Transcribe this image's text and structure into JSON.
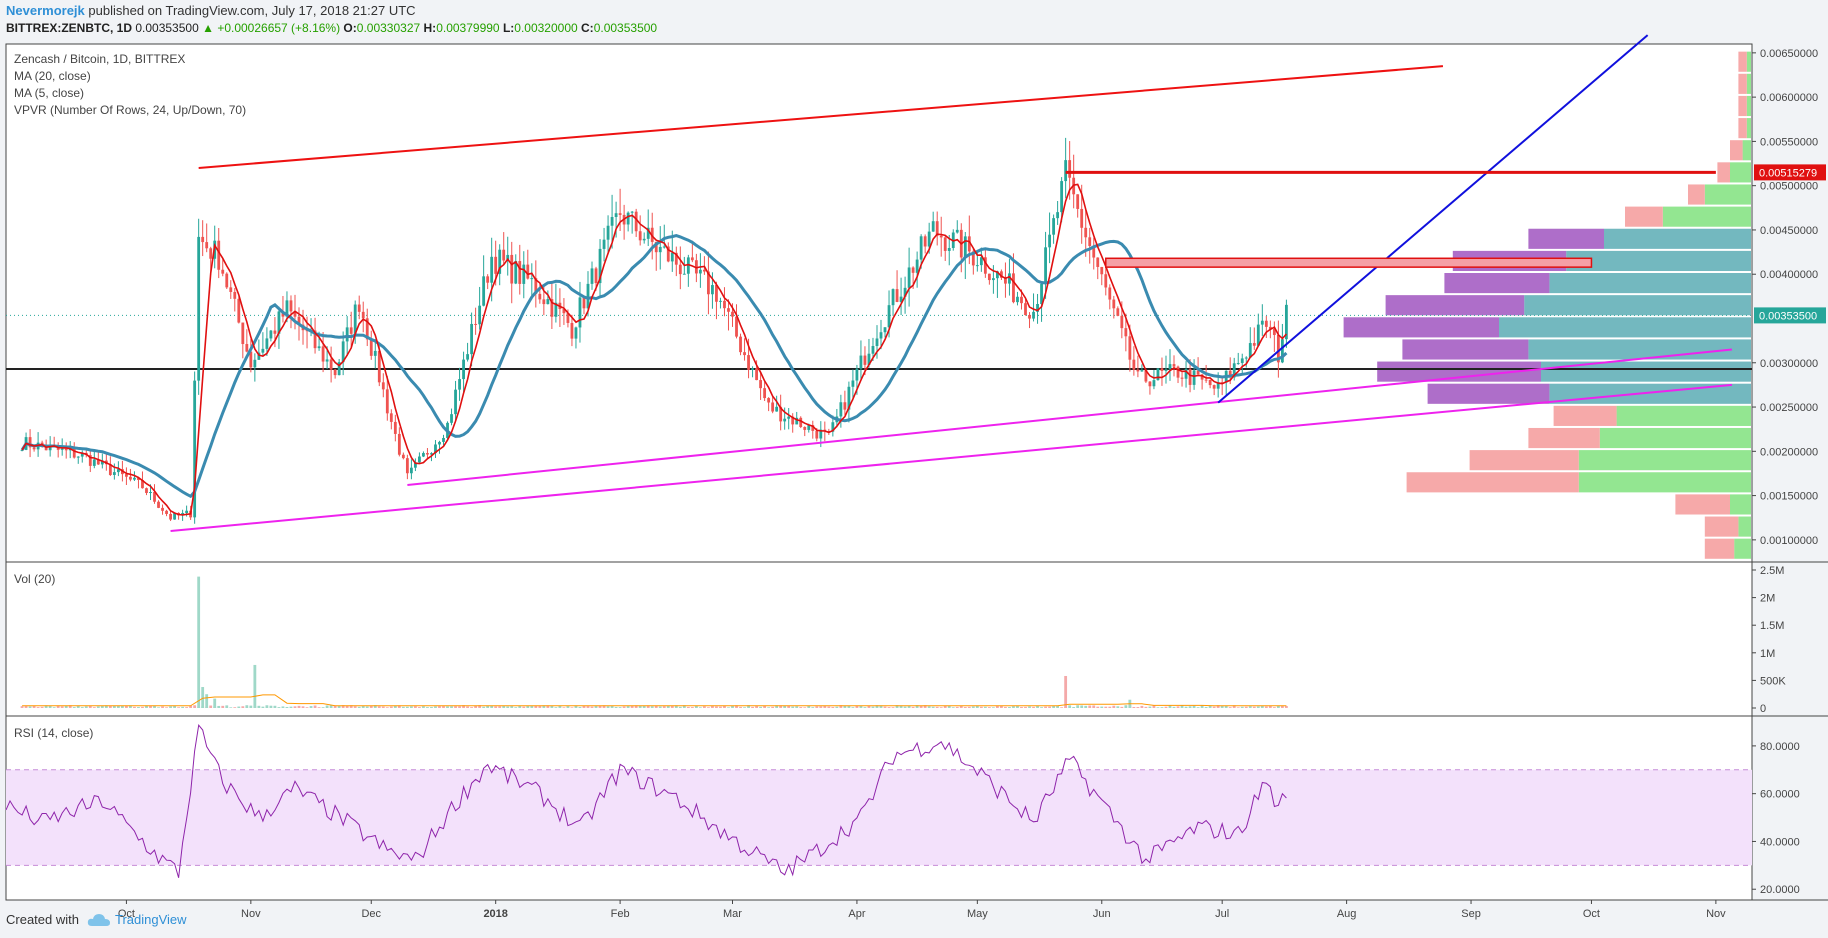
{
  "header": {
    "author": "Nevermorejk",
    "published": "published on TradingView.com, July 17, 2018 21:27 UTC",
    "symbol": "BITTREX:ZENBTC, 1D",
    "last": "0.00353500",
    "change": "+0.00026657 (+8.16%)",
    "o_label": "O:",
    "o": "0.00330327",
    "h_label": "H:",
    "h": "0.00379990",
    "l_label": "L:",
    "l": "0.00320000",
    "c_label": "C:",
    "c": "0.00353500"
  },
  "legend": {
    "title": "Zencash / Bitcoin, 1D, BITTREX",
    "ma20": "MA (20, close)",
    "ma5": "MA (5, close)",
    "vpvr": "VPVR (Number Of Rows, 24, Up/Down, 70)",
    "vol": "Vol (20)",
    "rsi": "RSI (14, close)"
  },
  "footer": {
    "created": "Created with",
    "brand": "TradingView"
  },
  "colors": {
    "up": "#26a69a",
    "down": "#ef5350",
    "ma5": "#e01010",
    "ma20": "#3a8bb0",
    "channel_top": "#ee1111",
    "channel_bottom": "#ee22ee",
    "trend": "#1010dd",
    "vp_up": "#80e27e",
    "vp_down": "#f49a9a",
    "vp_up_va": "#5aabb4",
    "vp_down_va": "#a055c0",
    "rsi": "#8e24aa",
    "rsi_band": "#f3e1fb"
  },
  "chart_data": [
    {
      "type": "candlestick",
      "title": "Zencash / Bitcoin, 1D, BITTREX",
      "x_ticks": [
        "Oct",
        "Nov",
        "Dec",
        "2018",
        "Feb",
        "Mar",
        "Apr",
        "May",
        "Jun",
        "Jul",
        "Aug",
        "Sep",
        "Oct",
        "Nov"
      ],
      "y_ticks": [
        "0.00650000",
        "0.00600000",
        "0.00550000",
        "0.00500000",
        "0.00450000",
        "0.00400000",
        "0.00300000",
        "0.00250000",
        "0.00200000",
        "0.00150000",
        "0.00100000"
      ],
      "ylim": [
        0.00075,
        0.0066
      ],
      "last_price_label": "0.00353500",
      "resistance_label": "0.00515279",
      "daily_close_keypoints": [
        {
          "date": "2017-09-05",
          "close": 0.0021
        },
        {
          "date": "2017-09-20",
          "close": 0.00195
        },
        {
          "date": "2017-10-05",
          "close": 0.0016
        },
        {
          "date": "2017-10-12",
          "close": 0.00125
        },
        {
          "date": "2017-10-17",
          "close": 0.0013
        },
        {
          "date": "2017-10-19",
          "close": 0.0044
        },
        {
          "date": "2017-10-24",
          "close": 0.0042
        },
        {
          "date": "2017-11-01",
          "close": 0.003
        },
        {
          "date": "2017-11-10",
          "close": 0.0036
        },
        {
          "date": "2017-11-22",
          "close": 0.0029
        },
        {
          "date": "2017-11-28",
          "close": 0.0037
        },
        {
          "date": "2017-12-05",
          "close": 0.0025
        },
        {
          "date": "2017-12-10",
          "close": 0.0017
        },
        {
          "date": "2017-12-20",
          "close": 0.0023
        },
        {
          "date": "2017-12-31",
          "close": 0.0042
        },
        {
          "date": "2018-01-10",
          "close": 0.0039
        },
        {
          "date": "2018-01-20",
          "close": 0.0034
        },
        {
          "date": "2018-02-01",
          "close": 0.0047
        },
        {
          "date": "2018-02-10",
          "close": 0.0043
        },
        {
          "date": "2018-02-25",
          "close": 0.0038
        },
        {
          "date": "2018-03-10",
          "close": 0.0025
        },
        {
          "date": "2018-03-25",
          "close": 0.00215
        },
        {
          "date": "2018-04-05",
          "close": 0.0033
        },
        {
          "date": "2018-04-20",
          "close": 0.0045
        },
        {
          "date": "2018-05-01",
          "close": 0.0042
        },
        {
          "date": "2018-05-15",
          "close": 0.0036
        },
        {
          "date": "2018-05-23",
          "close": 0.0051
        },
        {
          "date": "2018-06-02",
          "close": 0.0038
        },
        {
          "date": "2018-06-10",
          "close": 0.0028
        },
        {
          "date": "2018-06-20",
          "close": 0.0029
        },
        {
          "date": "2018-06-30",
          "close": 0.0027
        },
        {
          "date": "2018-07-08",
          "close": 0.0032
        },
        {
          "date": "2018-07-12",
          "close": 0.00345
        },
        {
          "date": "2018-07-15",
          "close": 0.0031
        },
        {
          "date": "2018-07-17",
          "close": 0.003535
        }
      ],
      "horizontal_level": 0.00293,
      "drawings": [
        {
          "name": "channel-top",
          "from": {
            "date": "2017-10-19",
            "price": 0.0052
          },
          "to": {
            "date": "2018-08-25",
            "price": 0.00635
          }
        },
        {
          "name": "channel-bottom-1",
          "from": {
            "date": "2017-10-12",
            "price": 0.0011
          },
          "to": {
            "date": "2018-11-05",
            "price": 0.00275
          }
        },
        {
          "name": "channel-bottom-2",
          "from": {
            "date": "2017-12-10",
            "price": 0.00162
          },
          "to": {
            "date": "2018-11-05",
            "price": 0.00315
          }
        },
        {
          "name": "trend-line",
          "from": {
            "date": "2018-06-30",
            "price": 0.00255
          },
          "to": {
            "date": "2018-10-15",
            "price": 0.0067
          }
        },
        {
          "name": "resistance",
          "from": {
            "date": "2018-05-23",
            "price": 0.00515
          },
          "to": {
            "date": "2018-11-01",
            "price": 0.00515
          }
        },
        {
          "name": "resistance-zone",
          "from": {
            "date": "2018-06-02",
            "price": 0.00418
          },
          "to": {
            "date": "2018-10-01",
            "price": 0.00408
          }
        }
      ],
      "volume_profile": [
        {
          "price": 0.0064,
          "up": 0.01,
          "down": 0.02
        },
        {
          "price": 0.00615,
          "up": 0.01,
          "down": 0.02
        },
        {
          "price": 0.0059,
          "up": 0.01,
          "down": 0.02
        },
        {
          "price": 0.00565,
          "up": 0.01,
          "down": 0.02
        },
        {
          "price": 0.0054,
          "up": 0.02,
          "down": 0.03
        },
        {
          "price": 0.00515,
          "up": 0.05,
          "down": 0.03
        },
        {
          "price": 0.0049,
          "up": 0.11,
          "down": 0.04
        },
        {
          "price": 0.00465,
          "up": 0.21,
          "down": 0.09
        },
        {
          "price": 0.0044,
          "up": 0.35,
          "down": 0.18
        },
        {
          "price": 0.00415,
          "up": 0.44,
          "down": 0.27
        },
        {
          "price": 0.0039,
          "up": 0.48,
          "down": 0.25
        },
        {
          "price": 0.00365,
          "up": 0.54,
          "down": 0.33
        },
        {
          "price": 0.0034,
          "up": 0.6,
          "down": 0.37
        },
        {
          "price": 0.00315,
          "up": 0.53,
          "down": 0.3
        },
        {
          "price": 0.0029,
          "up": 0.5,
          "down": 0.39
        },
        {
          "price": 0.00265,
          "up": 0.48,
          "down": 0.29
        },
        {
          "price": 0.0024,
          "up": 0.32,
          "down": 0.15
        },
        {
          "price": 0.00215,
          "up": 0.36,
          "down": 0.17
        },
        {
          "price": 0.0019,
          "up": 0.41,
          "down": 0.26
        },
        {
          "price": 0.00165,
          "up": 0.41,
          "down": 0.41
        },
        {
          "price": 0.0014,
          "up": 0.05,
          "down": 0.13
        },
        {
          "price": 0.00115,
          "up": 0.03,
          "down": 0.08
        },
        {
          "price": 0.0009,
          "up": 0.04,
          "down": 0.07
        }
      ]
    },
    {
      "type": "bar",
      "title": "Vol (20)",
      "y_ticks": [
        "2.5M",
        "2M",
        "1.5M",
        "1M",
        "500K",
        "0"
      ],
      "ylim": [
        0,
        2500000
      ],
      "spikes": [
        {
          "date": "2017-10-19",
          "value": 2380000
        },
        {
          "date": "2017-10-20",
          "value": 380000
        },
        {
          "date": "2017-10-21",
          "value": 250000
        },
        {
          "date": "2017-10-23",
          "value": 170000
        },
        {
          "date": "2017-11-02",
          "value": 780000
        },
        {
          "date": "2018-05-23",
          "value": 580000
        },
        {
          "date": "2018-06-08",
          "value": 150000
        }
      ],
      "base_volume": 40000
    },
    {
      "type": "line",
      "title": "RSI (14, close)",
      "y_ticks": [
        "80.0000",
        "60.0000",
        "40.0000",
        "20.0000"
      ],
      "ylim": [
        18,
        90
      ],
      "bands": [
        30,
        70
      ],
      "keypoints": [
        {
          "date": "2017-09-01",
          "value": 55
        },
        {
          "date": "2017-09-10",
          "value": 48
        },
        {
          "date": "2017-09-25",
          "value": 57
        },
        {
          "date": "2017-10-08",
          "value": 35
        },
        {
          "date": "2017-10-14",
          "value": 27
        },
        {
          "date": "2017-10-19",
          "value": 87
        },
        {
          "date": "2017-10-25",
          "value": 65
        },
        {
          "date": "2017-11-03",
          "value": 50
        },
        {
          "date": "2017-11-12",
          "value": 62
        },
        {
          "date": "2017-11-25",
          "value": 48
        },
        {
          "date": "2017-12-05",
          "value": 36
        },
        {
          "date": "2017-12-12",
          "value": 32
        },
        {
          "date": "2017-12-22",
          "value": 56
        },
        {
          "date": "2017-12-30",
          "value": 72
        },
        {
          "date": "2018-01-12",
          "value": 60
        },
        {
          "date": "2018-01-22",
          "value": 45
        },
        {
          "date": "2018-02-01",
          "value": 70
        },
        {
          "date": "2018-02-15",
          "value": 58
        },
        {
          "date": "2018-02-28",
          "value": 42
        },
        {
          "date": "2018-03-14",
          "value": 27
        },
        {
          "date": "2018-03-22",
          "value": 36
        },
        {
          "date": "2018-04-02",
          "value": 50
        },
        {
          "date": "2018-04-10",
          "value": 76
        },
        {
          "date": "2018-04-22",
          "value": 82
        },
        {
          "date": "2018-05-02",
          "value": 68
        },
        {
          "date": "2018-05-15",
          "value": 48
        },
        {
          "date": "2018-05-24",
          "value": 74
        },
        {
          "date": "2018-06-03",
          "value": 52
        },
        {
          "date": "2018-06-12",
          "value": 32
        },
        {
          "date": "2018-06-25",
          "value": 46
        },
        {
          "date": "2018-07-05",
          "value": 43
        },
        {
          "date": "2018-07-12",
          "value": 66
        },
        {
          "date": "2018-07-15",
          "value": 53
        },
        {
          "date": "2018-07-17",
          "value": 62
        }
      ]
    }
  ]
}
